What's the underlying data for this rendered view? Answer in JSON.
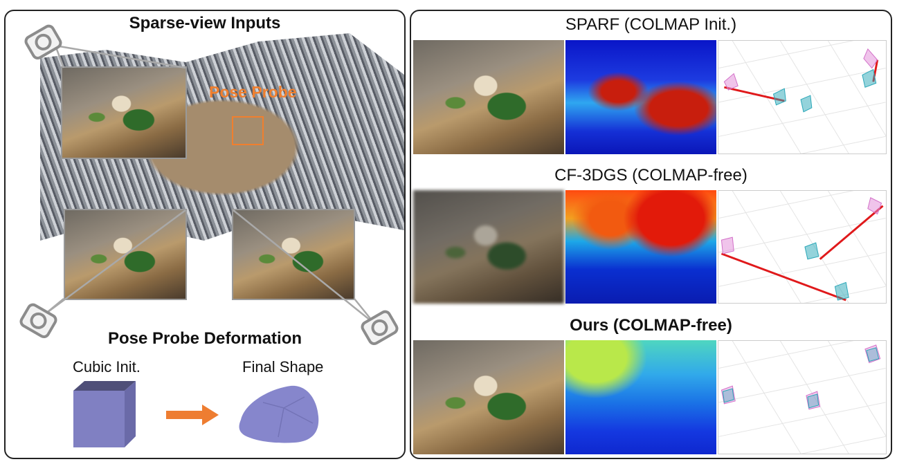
{
  "left": {
    "title": "Sparse-view Inputs",
    "probe_label": "Pose Probe",
    "deformation_title": "Pose Probe Deformation",
    "cubic_label": "Cubic Init.",
    "final_label": "Final Shape"
  },
  "right": {
    "rows": [
      {
        "title": "SPARF (COLMAP Init.)"
      },
      {
        "title": "CF-3DGS (COLMAP-free)"
      },
      {
        "title": "Ours (COLMAP-free)"
      }
    ]
  },
  "colors": {
    "probe_orange": "#f07f2e",
    "arrow_orange": "#ee7d31",
    "cube_purple": "#8080c2",
    "error_red": "#e0191b",
    "gt_pink": "#e28ad8",
    "pred_cyan": "#2aa7b8"
  }
}
